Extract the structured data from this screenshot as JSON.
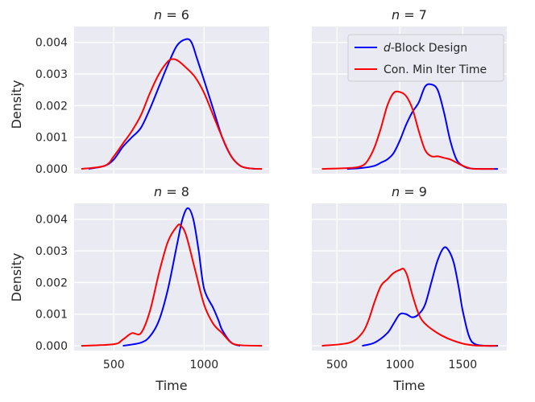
{
  "chart_data": {
    "type": "line",
    "kind": "density",
    "shared_ylabel": "Density",
    "shared_xlabel": "Time",
    "ylim": [
      -0.00015,
      0.0045
    ],
    "y_ticks": [
      0.0,
      0.001,
      0.002,
      0.003,
      0.004
    ],
    "y_tick_labels": [
      "0.000",
      "0.001",
      "0.002",
      "0.003",
      "0.004"
    ],
    "grid": true,
    "legend": {
      "position": "top-right",
      "panel": 1,
      "entries": [
        {
          "prefix": "d",
          "label": "-Block Design",
          "color": "#0000ff"
        },
        {
          "prefix": "",
          "label": "Con. Min Iter Time",
          "color": "#ff0000"
        }
      ]
    },
    "panels": [
      {
        "title_prefix": "n",
        "title_value": "= 6",
        "xlim": [
          280,
          1360
        ],
        "x_ticks": [
          500,
          1000
        ],
        "x_tick_labels": [],
        "show_ylabels": true,
        "series": [
          {
            "name": "d-Block Design",
            "color": "#0000ff",
            "x": [
              360,
              450,
              500,
              550,
              600,
              650,
              700,
              750,
              800,
              850,
              900,
              930,
              960,
              1000,
              1050,
              1100,
              1150,
              1200,
              1250,
              1300
            ],
            "y": [
              0,
              0.0001,
              0.0003,
              0.0007,
              0.001,
              0.0013,
              0.0019,
              0.0026,
              0.0033,
              0.0039,
              0.0041,
              0.004,
              0.0035,
              0.0028,
              0.0019,
              0.001,
              0.0004,
              0.0001,
              2e-05,
              0
            ]
          },
          {
            "name": "Con. Min Iter Time",
            "color": "#ff0000",
            "x": [
              320,
              450,
              500,
              550,
              600,
              650,
              700,
              750,
              800,
              830,
              860,
              900,
              950,
              1000,
              1050,
              1100,
              1150,
              1200,
              1250,
              1320
            ],
            "y": [
              0,
              0.0001,
              0.0004,
              0.0008,
              0.0012,
              0.0017,
              0.0024,
              0.003,
              0.0034,
              0.00347,
              0.0034,
              0.0032,
              0.0029,
              0.0024,
              0.0017,
              0.001,
              0.0004,
              0.0001,
              2e-05,
              0
            ]
          }
        ]
      },
      {
        "title_prefix": "n",
        "title_value": "= 7",
        "xlim": [
          300,
          1850
        ],
        "x_ticks": [
          500,
          1000,
          1500
        ],
        "x_tick_labels": [],
        "show_ylabels": false,
        "series": [
          {
            "name": "d-Block Design",
            "color": "#0000ff",
            "x": [
              580,
              700,
              800,
              850,
              900,
              950,
              1000,
              1050,
              1100,
              1150,
              1200,
              1250,
              1300,
              1350,
              1400,
              1450,
              1500,
              1550,
              1650,
              1780
            ],
            "y": [
              0,
              3e-05,
              0.0001,
              0.0002,
              0.0003,
              0.0005,
              0.0009,
              0.0014,
              0.0018,
              0.0021,
              0.0026,
              0.00267,
              0.0025,
              0.0018,
              0.0009,
              0.0003,
              0.0001,
              2e-05,
              0,
              0
            ]
          },
          {
            "name": "Con. Min Iter Time",
            "color": "#ff0000",
            "x": [
              380,
              600,
              700,
              750,
              800,
              850,
              900,
              950,
              1000,
              1050,
              1100,
              1150,
              1200,
              1250,
              1300,
              1350,
              1400,
              1450,
              1500,
              1550,
              1600,
              1750
            ],
            "y": [
              0,
              3e-05,
              0.0001,
              0.0003,
              0.0007,
              0.0013,
              0.002,
              0.0024,
              0.00243,
              0.0023,
              0.0019,
              0.0012,
              0.0006,
              0.0004,
              0.0004,
              0.00035,
              0.0003,
              0.0002,
              0.0001,
              3e-05,
              0,
              0
            ]
          }
        ]
      },
      {
        "title_prefix": "n",
        "title_value": "= 8",
        "xlim": [
          280,
          1360
        ],
        "x_ticks": [
          500,
          1000
        ],
        "x_tick_labels": [
          "500",
          "1000"
        ],
        "show_ylabels": true,
        "series": [
          {
            "name": "d-Block Design",
            "color": "#0000ff",
            "x": [
              550,
              650,
              700,
              750,
              800,
              850,
              880,
              910,
              940,
              970,
              1000,
              1050,
              1080,
              1100,
              1150,
              1200
            ],
            "y": [
              0,
              0.0001,
              0.0003,
              0.0008,
              0.0018,
              0.0032,
              0.004,
              0.00435,
              0.004,
              0.003,
              0.0018,
              0.0012,
              0.0008,
              0.0005,
              0.0001,
              0
            ]
          },
          {
            "name": "Con. Min Iter Time",
            "color": "#ff0000",
            "x": [
              320,
              500,
              550,
              600,
              650,
              700,
              750,
              800,
              850,
              870,
              900,
              950,
              1000,
              1050,
              1100,
              1150,
              1200,
              1320
            ],
            "y": [
              0,
              5e-05,
              0.0002,
              0.0004,
              0.0004,
              0.0011,
              0.0023,
              0.0033,
              0.00378,
              0.0038,
              0.0035,
              0.0024,
              0.0013,
              0.0007,
              0.0004,
              0.0001,
              2e-05,
              0
            ]
          }
        ]
      },
      {
        "title_prefix": "n",
        "title_value": "= 9",
        "xlim": [
          300,
          1850
        ],
        "x_ticks": [
          500,
          1000,
          1500
        ],
        "x_tick_labels": [
          "500",
          "1000",
          "1500"
        ],
        "show_ylabels": false,
        "series": [
          {
            "name": "d-Block Design",
            "color": "#0000ff",
            "x": [
              700,
              800,
              900,
              950,
              1000,
              1050,
              1100,
              1150,
              1200,
              1250,
              1300,
              1350,
              1390,
              1430,
              1470,
              1500,
              1550,
              1600,
              1700,
              1780
            ],
            "y": [
              0,
              0.0001,
              0.0004,
              0.0007,
              0.001,
              0.001,
              0.0009,
              0.001,
              0.0013,
              0.002,
              0.0027,
              0.0031,
              0.003,
              0.0026,
              0.0018,
              0.0011,
              0.0003,
              5e-05,
              0,
              0
            ]
          },
          {
            "name": "Con. Min Iter Time",
            "color": "#ff0000",
            "x": [
              380,
              600,
              700,
              750,
              800,
              850,
              900,
              950,
              1000,
              1030,
              1060,
              1100,
              1150,
              1200,
              1300,
              1400,
              1500,
              1600,
              1700,
              1770
            ],
            "y": [
              0,
              0.0001,
              0.0004,
              0.0008,
              0.0014,
              0.0019,
              0.0021,
              0.0023,
              0.0024,
              0.00243,
              0.0022,
              0.0016,
              0.001,
              0.0007,
              0.0004,
              0.0002,
              7e-05,
              1e-05,
              0,
              0
            ]
          }
        ]
      }
    ]
  }
}
